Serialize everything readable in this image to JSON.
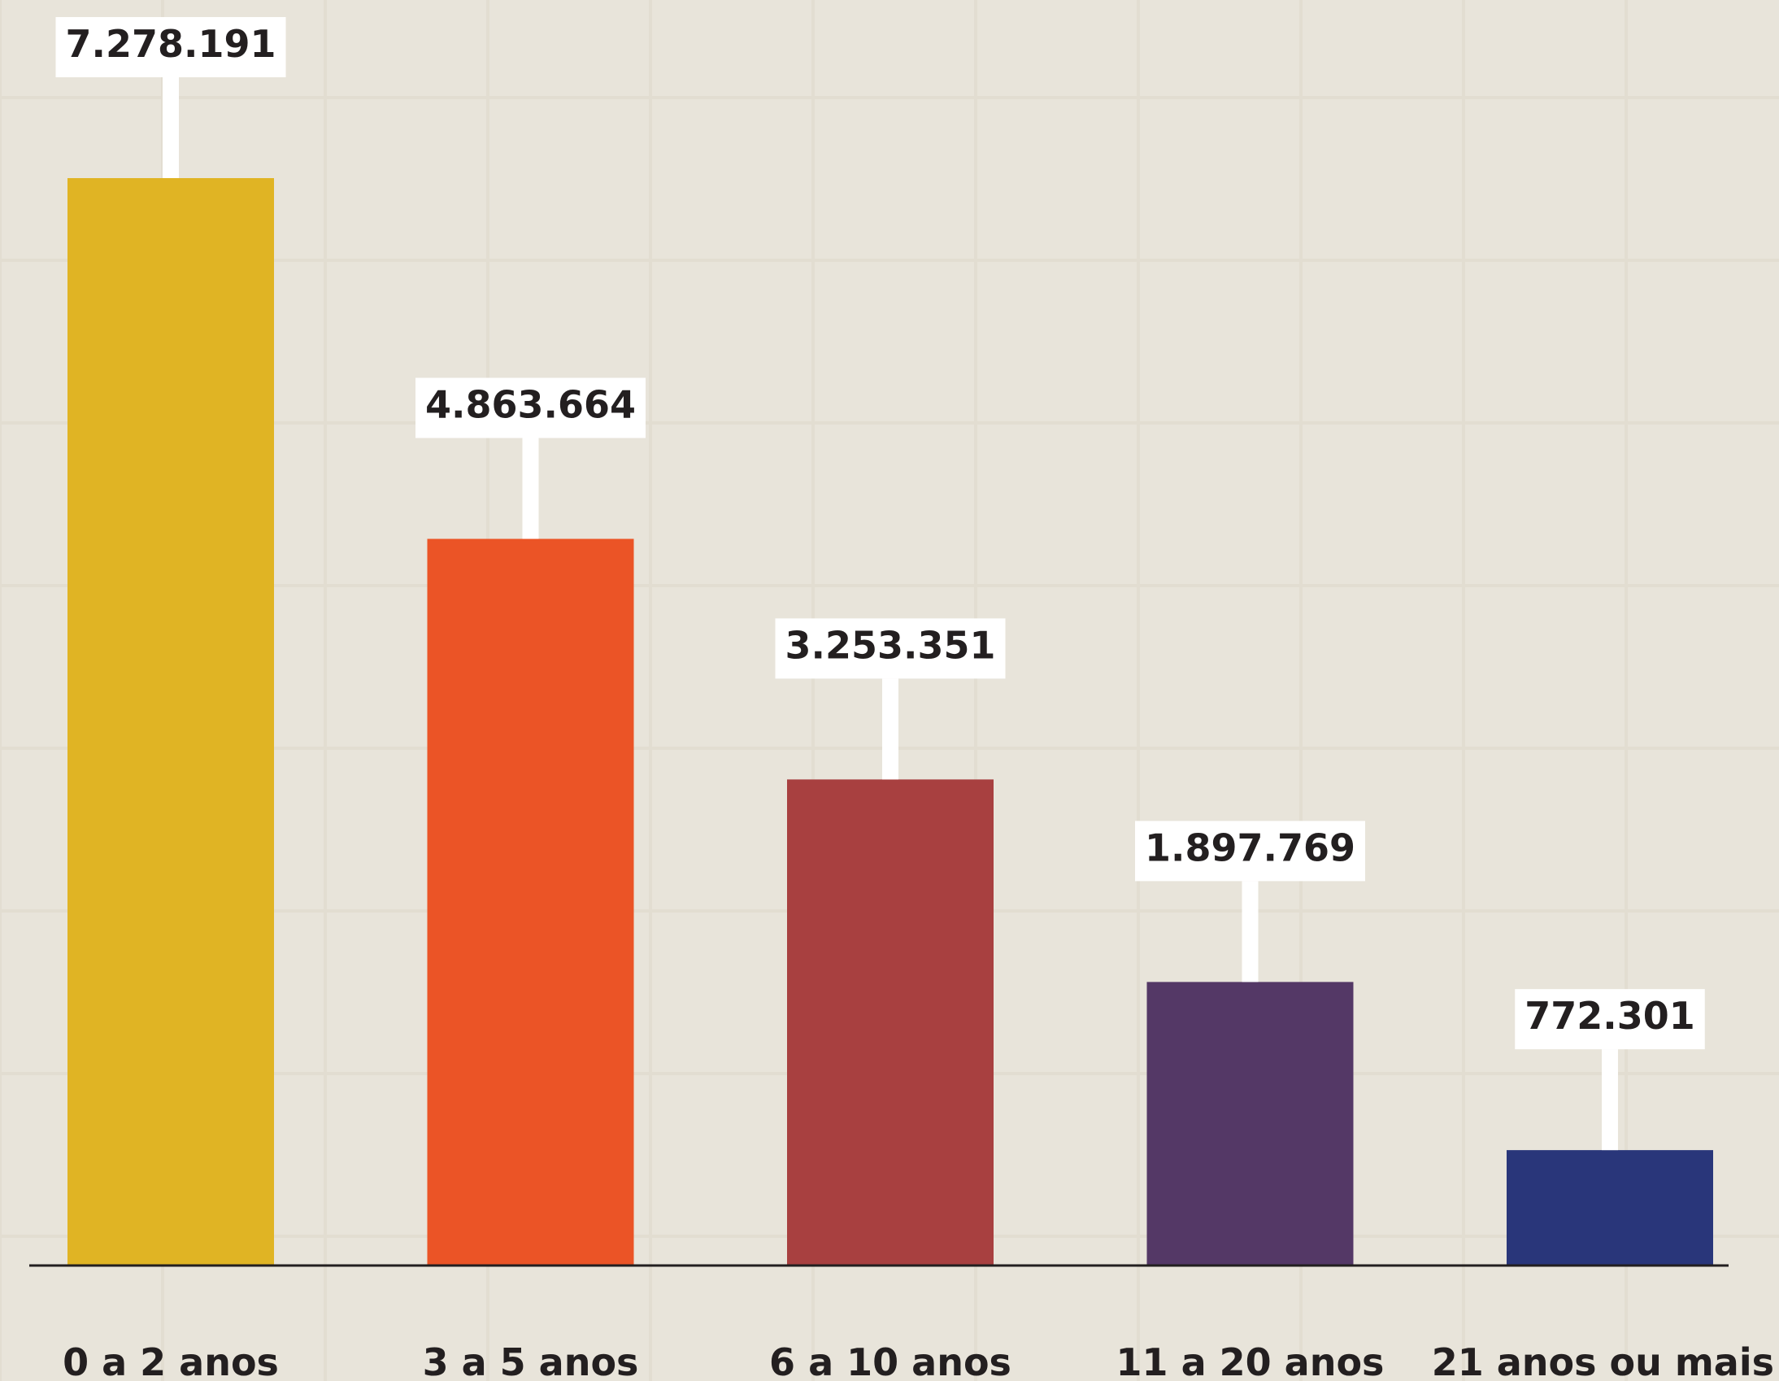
{
  "chart_data": {
    "type": "bar",
    "categories": [
      "0 a 2 anos",
      "3 a 5 anos",
      "6 a 10 anos",
      "11 a 20 anos",
      "21 anos ou mais"
    ],
    "values": [
      7278191,
      4863664,
      3253351,
      1897769,
      772301
    ],
    "data_labels": [
      "7.278.191",
      "4.863.664",
      "3.253.351",
      "1.897.769",
      "772.301"
    ],
    "colors": [
      "#e0b424",
      "#eb5426",
      "#a84040",
      "#543866",
      "#29367a"
    ],
    "background_color": "#e8e4da",
    "title": "",
    "xlabel": "",
    "ylabel": "",
    "ylim": [
      0,
      7278191
    ],
    "grid": true,
    "legend": "none"
  }
}
